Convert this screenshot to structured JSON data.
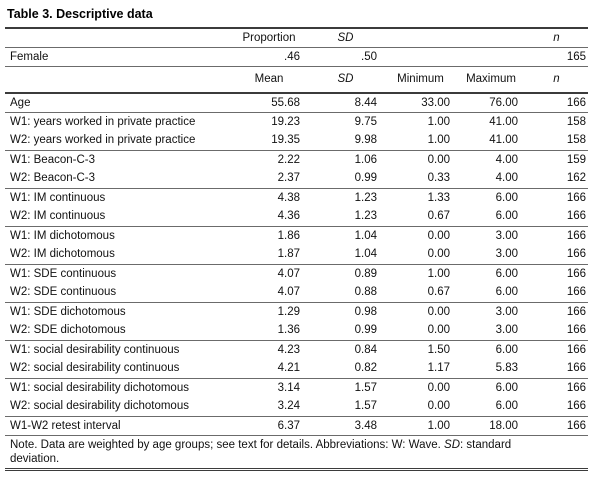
{
  "title": "Table 3. Descriptive data",
  "top_section": {
    "headers": {
      "proportion": "Proportion",
      "sd": "SD",
      "n": "n"
    },
    "female_row": {
      "label": "Female",
      "proportion": ".46",
      "sd": ".50",
      "n": "165"
    }
  },
  "main_table": {
    "headers": {
      "mean": "Mean",
      "sd": "SD",
      "minimum": "Minimum",
      "maximum": "Maximum",
      "n": "n"
    },
    "rows": [
      {
        "label": "Age",
        "mean": "55.68",
        "sd": "8.44",
        "min": "33.00",
        "max": "76.00",
        "n": "166",
        "group_end": true
      },
      {
        "label": "W1: years worked in private practice",
        "mean": "19.23",
        "sd": "9.75",
        "min": "1.00",
        "max": "41.00",
        "n": "158",
        "group_end": false
      },
      {
        "label": "W2: years worked in private practice",
        "mean": "19.35",
        "sd": "9.98",
        "min": "1.00",
        "max": "41.00",
        "n": "158",
        "group_end": true
      },
      {
        "label": "W1: Beacon-C-3",
        "mean": "2.22",
        "sd": "1.06",
        "min": "0.00",
        "max": "4.00",
        "n": "159",
        "group_end": false
      },
      {
        "label": "W2: Beacon-C-3",
        "mean": "2.37",
        "sd": "0.99",
        "min": "0.33",
        "max": "4.00",
        "n": "162",
        "group_end": true
      },
      {
        "label": "W1: IM continuous",
        "mean": "4.38",
        "sd": "1.23",
        "min": "1.33",
        "max": "6.00",
        "n": "166",
        "group_end": false
      },
      {
        "label": "W2: IM continuous",
        "mean": "4.36",
        "sd": "1.23",
        "min": "0.67",
        "max": "6.00",
        "n": "166",
        "group_end": true
      },
      {
        "label": "W1: IM dichotomous",
        "mean": "1.86",
        "sd": "1.04",
        "min": "0.00",
        "max": "3.00",
        "n": "166",
        "group_end": false
      },
      {
        "label": "W2: IM dichotomous",
        "mean": "1.87",
        "sd": "1.04",
        "min": "0.00",
        "max": "3.00",
        "n": "166",
        "group_end": true
      },
      {
        "label": "W1: SDE continuous",
        "mean": "4.07",
        "sd": "0.89",
        "min": "1.00",
        "max": "6.00",
        "n": "166",
        "group_end": false
      },
      {
        "label": "W2: SDE continuous",
        "mean": "4.07",
        "sd": "0.88",
        "min": "0.67",
        "max": "6.00",
        "n": "166",
        "group_end": true
      },
      {
        "label": "W1: SDE dichotomous",
        "mean": "1.29",
        "sd": "0.98",
        "min": "0.00",
        "max": "3.00",
        "n": "166",
        "group_end": false
      },
      {
        "label": "W2: SDE dichotomous",
        "mean": "1.36",
        "sd": "0.99",
        "min": "0.00",
        "max": "3.00",
        "n": "166",
        "group_end": true
      },
      {
        "label": "W1: social desirability continuous",
        "mean": "4.23",
        "sd": "0.84",
        "min": "1.50",
        "max": "6.00",
        "n": "166",
        "group_end": false
      },
      {
        "label": "W2: social desirability continuous",
        "mean": "4.21",
        "sd": "0.82",
        "min": "1.17",
        "max": "5.83",
        "n": "166",
        "group_end": true
      },
      {
        "label": "W1: social desirability dichotomous",
        "mean": "3.14",
        "sd": "1.57",
        "min": "0.00",
        "max": "6.00",
        "n": "166",
        "group_end": false
      },
      {
        "label": "W2: social desirability dichotomous",
        "mean": "3.24",
        "sd": "1.57",
        "min": "0.00",
        "max": "6.00",
        "n": "166",
        "group_end": true
      },
      {
        "label": "W1-W2 retest interval",
        "mean": "6.37",
        "sd": "3.48",
        "min": "1.00",
        "max": "18.00",
        "n": "166",
        "group_end": true
      }
    ]
  },
  "note": {
    "line1_prefix": "Note. Data are weighted by age groups; see text for details. Abbreviations: W: Wave. ",
    "line1_sd": "SD",
    "line1_suffix": ": standard",
    "line2": "deviation."
  }
}
